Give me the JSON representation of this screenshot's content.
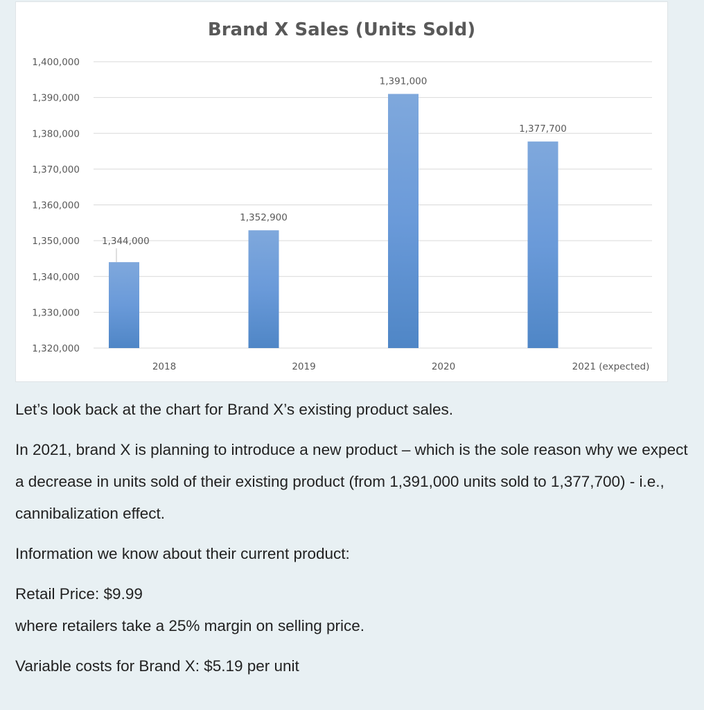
{
  "chart_data": {
    "type": "bar",
    "title": "Brand X Sales (Units Sold)",
    "xlabel": "",
    "ylabel": "",
    "categories": [
      "2018",
      "2019",
      "2020",
      "2021 (expected)"
    ],
    "values": [
      1344000,
      1352900,
      1391000,
      1377700
    ],
    "data_labels": [
      "1,344,000",
      "1,352,900",
      "1,391,000",
      "1,377,700"
    ],
    "ylim": [
      1320000,
      1400000
    ],
    "yticks": [
      1320000,
      1330000,
      1340000,
      1350000,
      1360000,
      1370000,
      1380000,
      1390000,
      1400000
    ],
    "ytick_labels": [
      "1,320,000",
      "1,330,000",
      "1,340,000",
      "1,350,000",
      "1,360,000",
      "1,370,000",
      "1,380,000",
      "1,390,000",
      "1,400,000"
    ],
    "grid": true,
    "legend": "none",
    "bar_color_top": "#7fa8dc",
    "bar_color_mid": "#6a9ad9",
    "bar_color_bottom": "#4f86c6"
  },
  "text": {
    "intro": "Let’s look back at the chart for Brand X’s existing product sales.",
    "plan": "In 2021, brand X is planning to introduce a new product – which is the sole reason why we expect a decrease in units sold of their existing product (from 1,391,000 units sold to 1,377,700) - i.e., cannibalization effect.",
    "info_heading": "Information we know about their current product:",
    "retail_price": "Retail Price: $9.99",
    "retail_margin": "where retailers take a 25% margin on selling price.",
    "variable_costs": "Variable costs for Brand X: $5.19 per unit"
  }
}
